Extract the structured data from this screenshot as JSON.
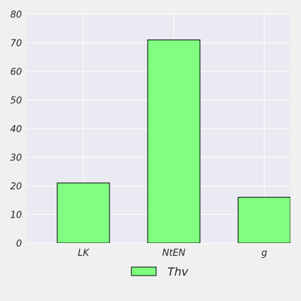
{
  "chart_data": {
    "type": "bar",
    "categories": [
      "LK",
      "NtEN",
      "g"
    ],
    "series": [
      {
        "name": "Thv",
        "values": [
          21,
          71,
          16
        ]
      }
    ],
    "title": "",
    "xlabel": "",
    "ylabel": "",
    "ylim": [
      0,
      80
    ],
    "yticks": [
      0,
      10,
      20,
      30,
      40,
      50,
      60,
      70,
      80
    ],
    "grid": true,
    "legend": "bottom-center",
    "colors": {
      "plot_background": "#eaeaf2",
      "page_background": "#f0f0f0",
      "bar_fill": "#80ff80",
      "bar_stroke": "#000000",
      "grid": "#ffffff"
    }
  }
}
